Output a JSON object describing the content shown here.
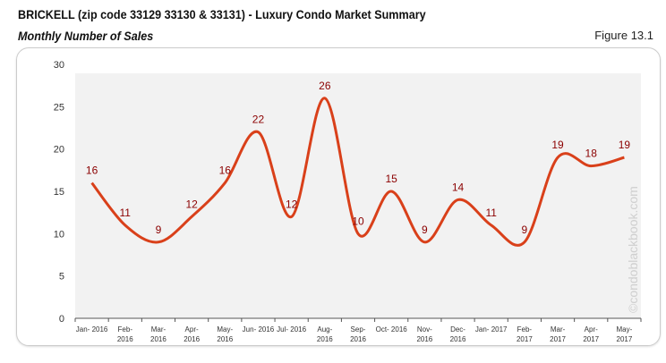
{
  "header": {
    "title": "BRICKELL (zip code 33129 33130 & 33131) - Luxury Condo Market Summary",
    "subtitle": "Monthly Number of Sales",
    "figure": "Figure 13.1"
  },
  "watermark": "©condoblackbook.com",
  "chart_data": {
    "type": "line",
    "categories": [
      "Jan- 2016",
      "Feb- 2016",
      "Mar- 2016",
      "Apr- 2016",
      "May- 2016",
      "Jun- 2016",
      "Jul- 2016",
      "Aug- 2016",
      "Sep- 2016",
      "Oct- 2016",
      "Nov- 2016",
      "Dec- 2016",
      "Jan- 2017",
      "Feb- 2017",
      "Mar- 2017",
      "Apr- 2017",
      "May- 2017"
    ],
    "values": [
      16,
      11,
      9,
      12,
      16,
      22,
      12,
      26,
      10,
      15,
      9,
      14,
      11,
      9,
      19,
      18,
      19
    ],
    "ylim": [
      0,
      30
    ],
    "yticks": [
      0,
      5,
      10,
      15,
      20,
      25,
      30
    ],
    "line_color": "#d9401a",
    "label_color": "#8b0000",
    "grid": false,
    "smooth": true
  }
}
